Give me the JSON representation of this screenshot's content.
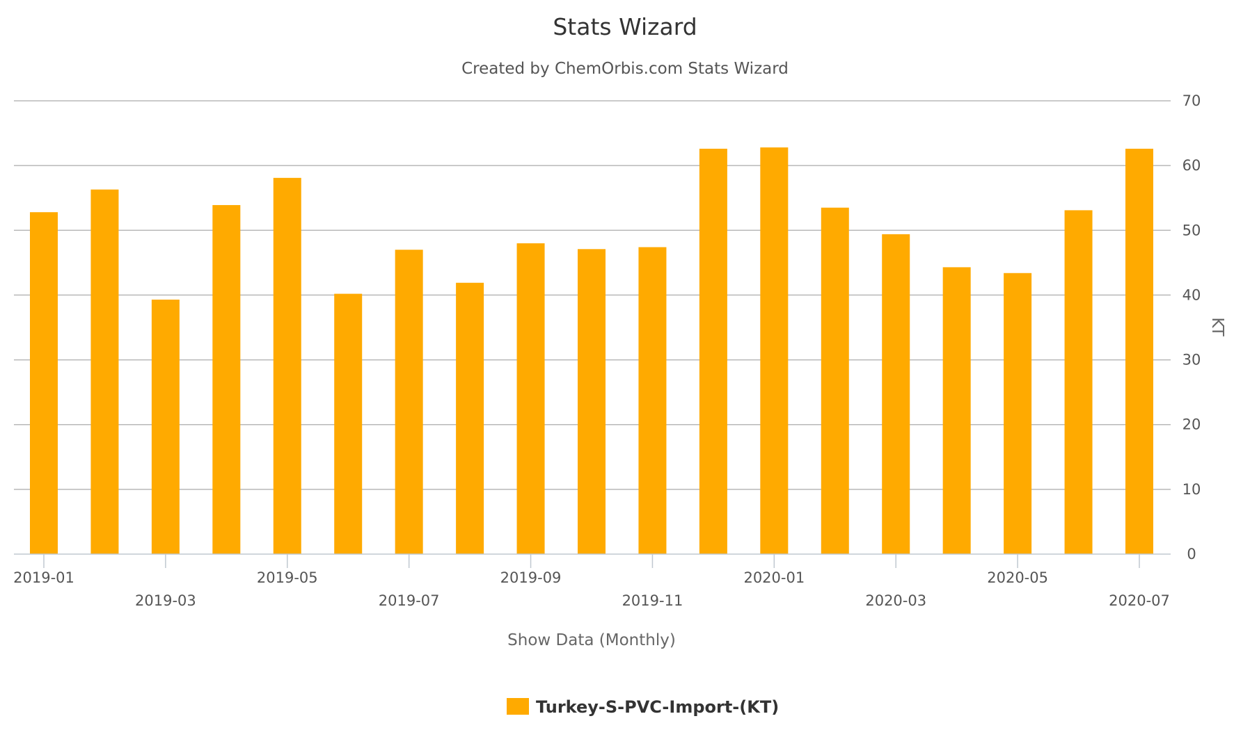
{
  "title": "Stats Wizard",
  "subtitle": "Created by ChemOrbis.com Stats Wizard",
  "x_axis_label": "Show Data (Monthly)",
  "legend": {
    "label": "Turkey-S-PVC-Import-(KT)",
    "color": "#FFAA00"
  },
  "chart_data": {
    "type": "bar",
    "title": "Stats Wizard",
    "subtitle": "Created by ChemOrbis.com Stats Wizard",
    "xlabel": "Show Data (Monthly)",
    "ylabel": "KT",
    "ylim": [
      0,
      70
    ],
    "yticks": [
      0,
      10,
      20,
      30,
      40,
      50,
      60,
      70
    ],
    "y_axis_side": "right",
    "grid": true,
    "legend_position": "bottom-center",
    "categories": [
      "2019-01",
      "2019-02",
      "2019-03",
      "2019-04",
      "2019-05",
      "2019-06",
      "2019-07",
      "2019-08",
      "2019-09",
      "2019-10",
      "2019-11",
      "2019-12",
      "2020-01",
      "2020-02",
      "2020-03",
      "2020-04",
      "2020-05",
      "2020-06",
      "2020-07"
    ],
    "xtick_labels": [
      "2019-01",
      "2019-03",
      "2019-05",
      "2019-07",
      "2019-09",
      "2019-11",
      "2020-01",
      "2020-03",
      "2020-05",
      "2020-07"
    ],
    "series": [
      {
        "name": "Turkey-S-PVC-Import-(KT)",
        "color": "#FFAA00",
        "values": [
          52.8,
          56.3,
          39.3,
          53.9,
          58.1,
          40.2,
          47.0,
          41.9,
          48.0,
          47.1,
          47.4,
          62.6,
          62.8,
          53.5,
          49.4,
          44.3,
          43.4,
          53.1,
          62.6
        ]
      }
    ]
  }
}
